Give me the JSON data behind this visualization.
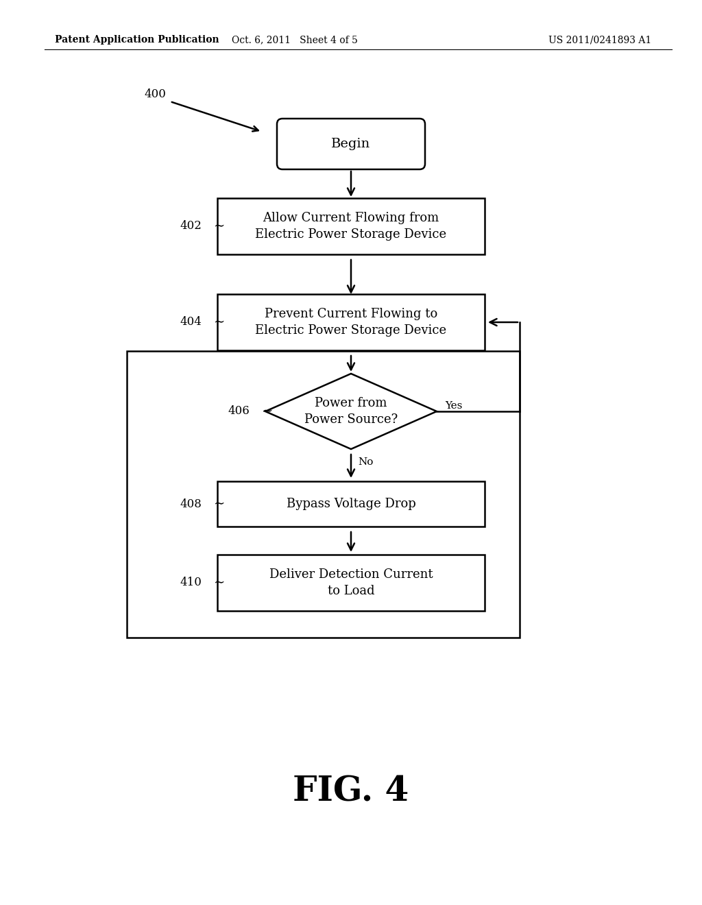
{
  "bg_color": "#ffffff",
  "header_left": "Patent Application Publication",
  "header_center": "Oct. 6, 2011   Sheet 4 of 5",
  "header_right": "US 2011/0241893 A1",
  "fig_label": "FIG. 4",
  "diagram_label": "400",
  "text_color": "#000000",
  "line_color": "#000000",
  "begin_text": "Begin",
  "box402_text": "Allow Current Flowing from\nElectric Power Storage Device",
  "box402_label": "402",
  "box404_text": "Prevent Current Flowing to\nElectric Power Storage Device",
  "box404_label": "404",
  "diamond406_text": "Power from\nPower Source?",
  "diamond406_label": "406",
  "yes_label": "Yes",
  "no_label": "No",
  "box408_text": "Bypass Voltage Drop",
  "box408_label": "408",
  "box410_text": "Deliver Detection Current\nto Load",
  "box410_label": "410",
  "font_size_node": 13,
  "font_size_header": 10,
  "font_size_fig": 36,
  "font_size_label": 12,
  "font_size_yesno": 11,
  "lw": 1.8
}
